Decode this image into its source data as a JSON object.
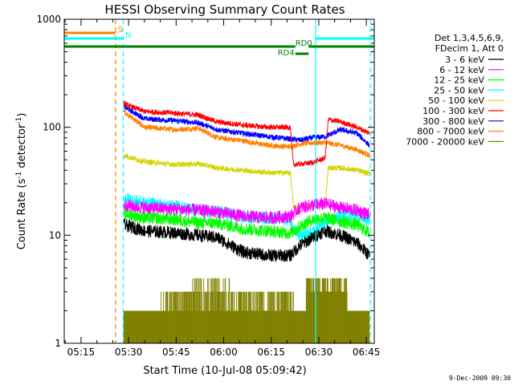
{
  "chart_data": {
    "type": "line",
    "title": "HESSI Observing Summary Count Rates",
    "xlabel": "Start Time (10-Jul-08 05:09:42)",
    "ylabel_main": "Count Rate (s",
    "ylabel_sup1": "-1",
    "ylabel_mid": " detector",
    "ylabel_sup2": "-1",
    "ylabel_end": ")",
    "y_scale": "log",
    "xlim": [
      "05:09:42",
      "06:47:30"
    ],
    "ylim": [
      1,
      1000
    ],
    "x_ticks": [
      "05:15",
      "05:30",
      "05:45",
      "06:00",
      "06:15",
      "06:30",
      "06:45"
    ],
    "x_tick_minutes": [
      315,
      330,
      345,
      360,
      375,
      390,
      405
    ],
    "y_tick_labels": [
      "1",
      "10",
      "100",
      "1000"
    ],
    "y_tick_values": [
      1,
      10,
      100,
      1000
    ],
    "legend_header": [
      "Det 1,3,4,5,6,9,",
      "FDecim 1, Att 0"
    ],
    "legend_placement": "right",
    "footer": "9-Dec-2009 09:30",
    "series": [
      {
        "name": "3 - 6 keV",
        "color": "#000000",
        "t": [
          328.5,
          335,
          345,
          352,
          358,
          366,
          374,
          381,
          384,
          388,
          392,
          397,
          402,
          406
        ],
        "y": [
          12.5,
          11,
          10.5,
          10,
          9.5,
          7,
          6.5,
          6.5,
          8,
          9.5,
          11,
          10,
          8.5,
          6.5
        ]
      },
      {
        "name": "6 - 12 keV",
        "color": "#ff00ff",
        "t": [
          328.5,
          335,
          345,
          352,
          358,
          366,
          374,
          381,
          384,
          388,
          392,
          397,
          402,
          406
        ],
        "y": [
          19,
          18,
          17.5,
          17,
          16.5,
          15,
          14.5,
          15,
          18,
          19,
          19.5,
          18,
          17,
          15.5
        ]
      },
      {
        "name": "12 - 25 keV",
        "color": "#00ff00",
        "t": [
          328.5,
          335,
          345,
          352,
          358,
          366,
          374,
          381,
          384,
          388,
          392,
          397,
          402,
          406
        ],
        "y": [
          16,
          14.5,
          14,
          13,
          13,
          11.5,
          11,
          10.5,
          12,
          14,
          14.5,
          13.5,
          12.5,
          10.5
        ]
      },
      {
        "name": "25 - 50 keV",
        "color": "#00ffff",
        "t": [
          328.5,
          335,
          345,
          352,
          358,
          366,
          374,
          381,
          384,
          388,
          392,
          397,
          402,
          406
        ],
        "y": [
          22,
          20,
          18.5,
          17,
          16.5,
          15,
          14.5,
          14,
          9.5,
          10.5,
          13,
          15,
          16,
          14
        ]
      },
      {
        "name": "50 - 100 keV",
        "color": "#d4d400",
        "t": [
          328.5,
          335,
          345,
          352,
          358,
          366,
          374,
          381,
          382,
          388,
          392,
          393,
          397,
          402,
          406
        ],
        "y": [
          55,
          48,
          45,
          46,
          42,
          40,
          38,
          38,
          18,
          19,
          19,
          42,
          42,
          40,
          37
        ]
      },
      {
        "name": "100 - 300 keV",
        "color": "#ff0000",
        "t": [
          328.5,
          335,
          345,
          352,
          358,
          366,
          374,
          381,
          382,
          388,
          392,
          393,
          397,
          402,
          406
        ],
        "y": [
          165,
          140,
          135,
          130,
          112,
          105,
          100,
          100,
          45,
          47,
          52,
          118,
          112,
          100,
          88
        ]
      },
      {
        "name": "300 - 800 keV",
        "color": "#0000ff",
        "t": [
          328.5,
          335,
          345,
          352,
          358,
          366,
          374,
          381,
          384,
          388,
          392,
          397,
          402,
          406
        ],
        "y": [
          155,
          120,
          115,
          110,
          95,
          88,
          82,
          78,
          76,
          80,
          82,
          95,
          88,
          68
        ]
      },
      {
        "name": "800 - 7000 keV",
        "color": "#ff8000",
        "t": [
          328.5,
          335,
          345,
          352,
          358,
          366,
          374,
          381,
          384,
          388,
          392,
          397,
          402,
          406
        ],
        "y": [
          140,
          100,
          95,
          98,
          80,
          75,
          68,
          66,
          70,
          72,
          72,
          68,
          62,
          55
        ]
      },
      {
        "name": "7000 - 20000 keV",
        "color": "#808000",
        "t": [
          328.5,
          406
        ],
        "y": [
          2,
          2
        ]
      }
    ],
    "annotations": [
      {
        "label": "S",
        "color": "#ff8000"
      },
      {
        "label": "N",
        "color": "#00ffff"
      },
      {
        "label": "RD0",
        "color": "#008000"
      },
      {
        "label": "RD4",
        "color": "#008000"
      }
    ],
    "vertical_lines": [
      {
        "color": "#ff8000",
        "style": "dashed",
        "minute": 325.9
      },
      {
        "color": "#00ffff",
        "style": "dashed",
        "minute": 328.3
      },
      {
        "color": "#00ffff",
        "style": "solid",
        "minute": 389.0
      },
      {
        "color": "#00ffff",
        "style": "dashed",
        "minute": 406.3
      }
    ]
  }
}
